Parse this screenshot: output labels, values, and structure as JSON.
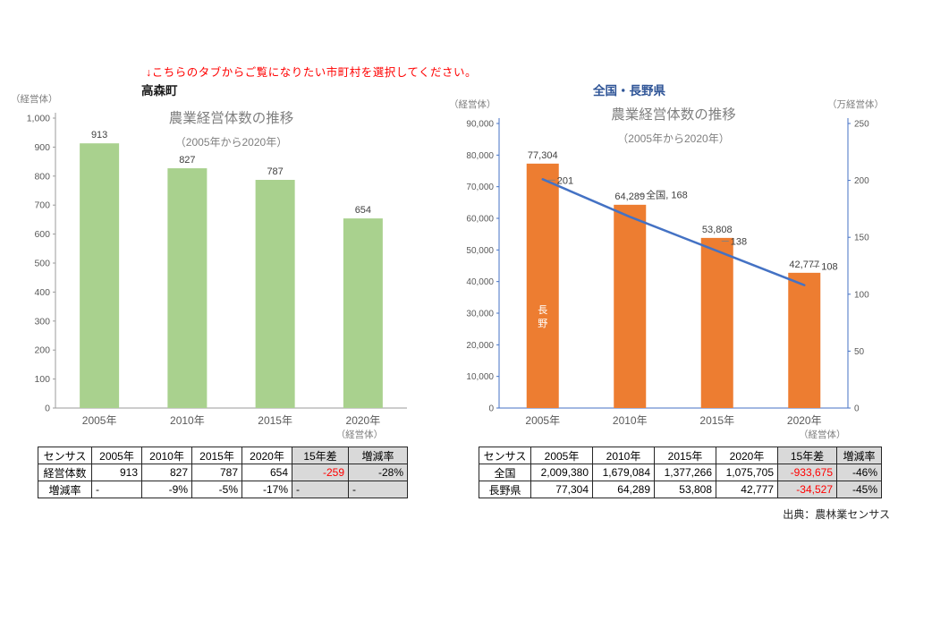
{
  "notice": {
    "text": "↓こちらのタブからご覧になりたい市町村を選択してください。"
  },
  "left_panel": {
    "title": "高森町"
  },
  "right_panel": {
    "title": "全国・長野県"
  },
  "source": "出典：農林業センサス",
  "chart_data": [
    {
      "type": "bar",
      "title": "農業経営体数の推移",
      "subtitle": "（2005年から2020年）",
      "unit_left": "（経営体）",
      "x_unit": "（経営体）",
      "categories": [
        "2005年",
        "2010年",
        "2015年",
        "2020年"
      ],
      "series": [
        {
          "name": "高森町",
          "type": "bar",
          "axis": "left",
          "color": "#A9D18E",
          "values": [
            913,
            827,
            787,
            654
          ],
          "labels": [
            "913",
            "827",
            "787",
            "654"
          ]
        }
      ],
      "ylim_left": [
        0,
        1000
      ],
      "ystep_left": 100,
      "axis_color": "#9B9B9B",
      "grid": false,
      "legend": "none"
    },
    {
      "type": "bar+line",
      "title": "農業経営体数の推移",
      "subtitle": "（2005年から2020年）",
      "unit_left": "（経営体）",
      "unit_right": "（万経営体）",
      "x_unit": "（経営体）",
      "categories": [
        "2005年",
        "2010年",
        "2015年",
        "2020年"
      ],
      "series": [
        {
          "name": "長野",
          "type": "bar",
          "axis": "left",
          "color": "#ED7D31",
          "values": [
            77304,
            64289,
            53808,
            42777
          ],
          "labels": [
            "77,304",
            "64,289",
            "53,808",
            "42,777"
          ],
          "in_bar_label": "長野"
        },
        {
          "name": "全国",
          "type": "line",
          "axis": "right",
          "color": "#4472C4",
          "values": [
            201,
            168,
            138,
            108
          ],
          "point_labels": [
            "201",
            "全国, 168",
            "138",
            "108"
          ]
        }
      ],
      "ylim_left": [
        0,
        90000
      ],
      "ystep_left": 10000,
      "ylim_right": [
        0,
        250
      ],
      "ystep_right": 50,
      "axis_color": "#4472C4",
      "grid": false,
      "legend": "none"
    }
  ],
  "tables": [
    {
      "headers": [
        "センサス",
        "2005年",
        "2010年",
        "2015年",
        "2020年",
        "15年差",
        "増減率"
      ],
      "rows": [
        [
          "経営体数",
          "913",
          "827",
          "787",
          "654",
          "-259",
          "-28%"
        ],
        [
          "増減率",
          "-",
          "-9%",
          "-5%",
          "-17%",
          "-",
          "-"
        ]
      ]
    },
    {
      "headers": [
        "センサス",
        "2005年",
        "2010年",
        "2015年",
        "2020年",
        "15年差",
        "増減率"
      ],
      "rows": [
        [
          "全国",
          "2,009,380",
          "1,679,084",
          "1,377,266",
          "1,075,705",
          "-933,675",
          "-46%"
        ],
        [
          "長野県",
          "77,304",
          "64,289",
          "53,808",
          "42,777",
          "-34,527",
          "-45%"
        ]
      ]
    }
  ]
}
